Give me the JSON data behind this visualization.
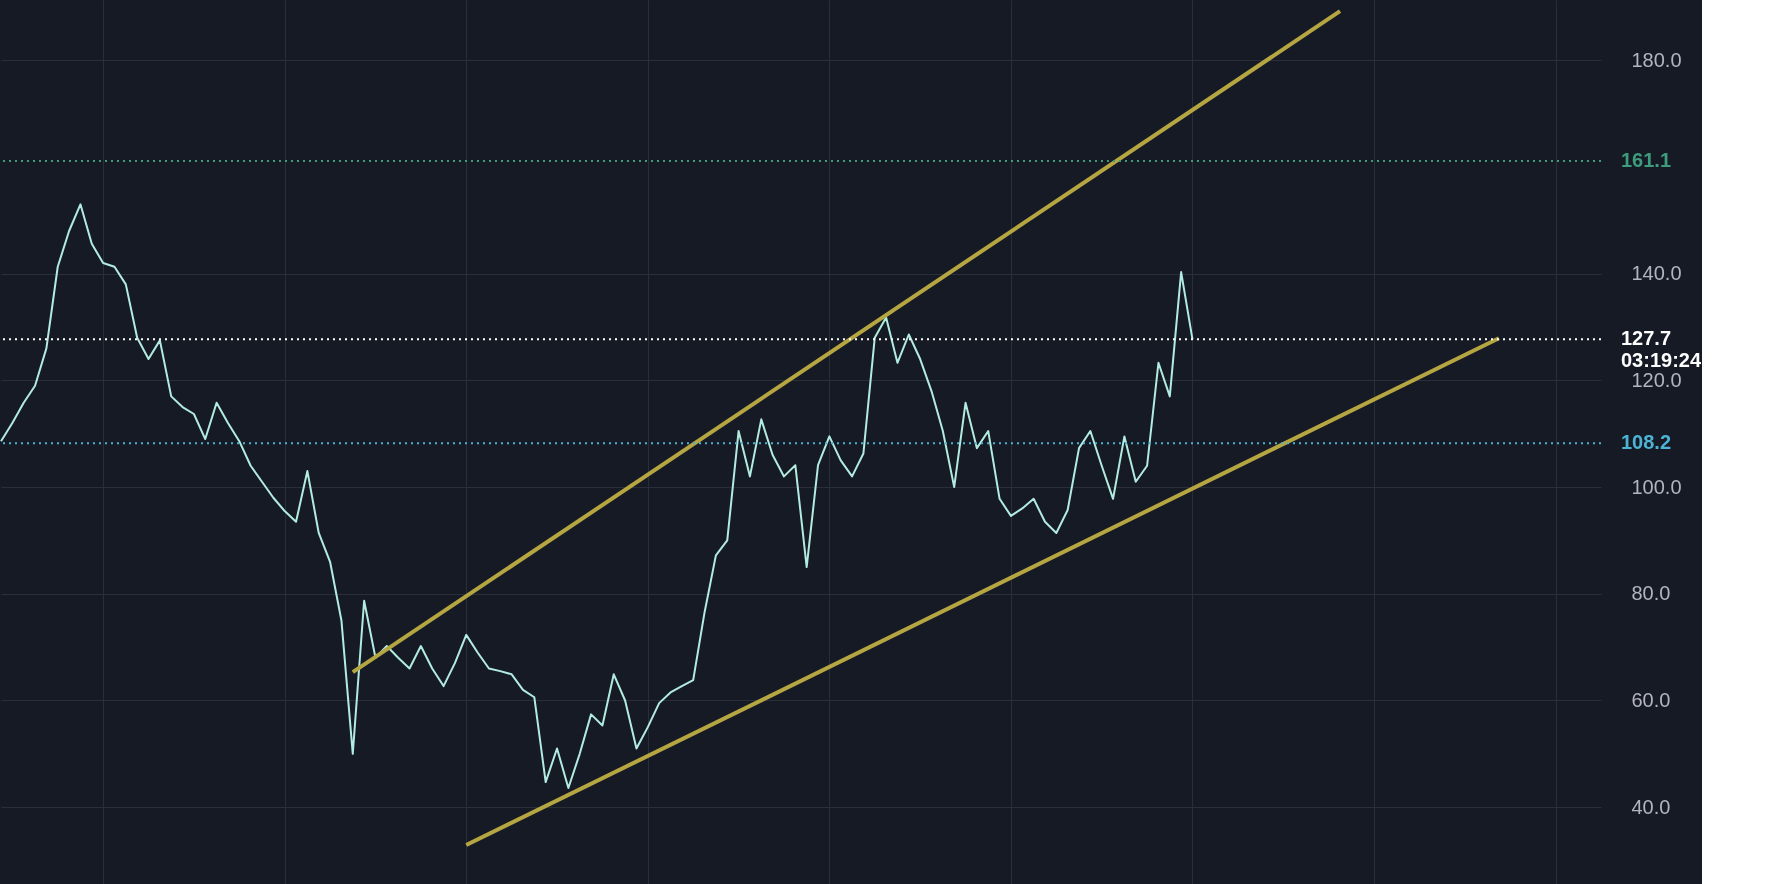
{
  "chart_data": {
    "type": "line",
    "ylim": [
      25.6,
      191.3
    ],
    "categories": [
      null,
      null,
      null,
      null,
      null,
      null,
      null,
      null,
      null,
      null,
      null,
      null,
      null,
      null,
      null,
      null,
      null,
      null,
      null,
      null,
      null,
      null,
      null,
      null,
      null,
      null,
      null,
      null,
      null,
      null,
      null,
      null,
      null,
      null,
      null,
      null,
      null,
      null,
      null,
      null,
      null,
      null,
      null,
      null,
      null,
      null,
      null,
      null,
      null,
      null,
      null,
      null,
      null,
      null,
      null,
      null,
      null,
      null,
      null,
      null,
      null,
      null,
      null,
      null,
      null,
      null,
      null,
      null,
      null,
      null,
      null,
      null,
      null,
      null,
      null,
      null,
      null,
      null,
      null,
      null,
      null,
      null,
      null,
      null,
      null,
      null,
      null,
      null,
      null,
      null,
      null,
      null,
      null,
      null,
      null,
      null,
      null,
      null,
      null,
      null,
      null,
      null,
      null,
      null,
      null,
      null,
      null,
      null,
      null,
      null,
      null,
      null,
      null,
      null,
      null,
      null,
      null,
      null,
      null,
      null,
      null,
      null,
      null,
      null,
      null,
      null,
      null,
      null,
      null,
      null,
      null,
      null,
      null,
      null,
      null,
      null,
      null,
      null,
      null,
      null,
      null,
      null
    ],
    "yticks": [
      {
        "value": 40,
        "label": "40.0"
      },
      {
        "value": 60,
        "label": "60.0"
      },
      {
        "value": 80,
        "label": "80.0"
      },
      {
        "value": 100,
        "label": "100.0"
      },
      {
        "value": 120,
        "label": "120.0"
      },
      {
        "value": 140,
        "label": "140.0"
      },
      {
        "value": 180,
        "label": "180.0"
      }
    ],
    "tick_labels": "y",
    "grid": true,
    "marker": "none",
    "series": [
      {
        "color": "#b2ebe0",
        "values": [
          108.6,
          112,
          115.8,
          119,
          126,
          141.3,
          148,
          153,
          145.6,
          142,
          141.3,
          138,
          128,
          124,
          127.5,
          117,
          115,
          113.7,
          109,
          115.8,
          112,
          108.6,
          104,
          101,
          98,
          95.5,
          93.5,
          103,
          91.4,
          86,
          75,
          50,
          78.7,
          68,
          70.2,
          68,
          66,
          70.2,
          66,
          62.7,
          67,
          72.3,
          69,
          66,
          65.5,
          64.9,
          62,
          60.6,
          44.7,
          51,
          43.6,
          50,
          57.4,
          55.3,
          64.9,
          60,
          51,
          55,
          59.5,
          61.5,
          62.7,
          63.8,
          76.5,
          87.2,
          90,
          110.5,
          102,
          112.7,
          106,
          102,
          104.1,
          85,
          104.1,
          109.5,
          105,
          102,
          106.3,
          128,
          131.8,
          123.3,
          128.6,
          124,
          118,
          110.5,
          100,
          115.8,
          107.3,
          110.5,
          97.8,
          94.6,
          96,
          97.8,
          93.5,
          91.4,
          95.7,
          107.3,
          110.5,
          104,
          97.8,
          109.5,
          101,
          104,
          123.3,
          117,
          140.3,
          127.7,
          null,
          null,
          null,
          null,
          null,
          null,
          null,
          null,
          null,
          null,
          null,
          null,
          null,
          null,
          null,
          null,
          null,
          null,
          null,
          null,
          null,
          null,
          null,
          null,
          null,
          null,
          null,
          null,
          null,
          null,
          null,
          null,
          null,
          null,
          null,
          null
        ]
      },
      {
        "color": "#b5a642",
        "values": [
          null,
          null,
          null,
          null,
          null,
          null,
          null,
          null,
          null,
          null,
          null,
          null,
          null,
          null,
          null,
          null,
          null,
          null,
          null,
          null,
          null,
          null,
          null,
          null,
          null,
          null,
          null,
          null,
          null,
          null,
          null,
          65.3,
          null,
          null,
          null,
          null,
          null,
          null,
          null,
          null,
          null,
          null,
          null,
          null,
          null,
          null,
          null,
          null,
          null,
          null,
          null,
          null,
          null,
          null,
          null,
          null,
          null,
          null,
          null,
          null,
          null,
          null,
          null,
          null,
          null,
          null,
          null,
          null,
          null,
          null,
          null,
          null,
          null,
          null,
          null,
          null,
          null,
          null,
          null,
          null,
          null,
          null,
          null,
          null,
          null,
          null,
          null,
          null,
          null,
          null,
          null,
          null,
          null,
          null,
          null,
          null,
          null,
          null,
          null,
          null,
          null,
          null,
          null,
          null,
          null,
          null,
          null,
          null,
          null,
          null,
          null,
          null,
          null,
          null,
          null,
          null,
          null,
          null,
          189.2,
          null,
          null,
          null,
          null,
          null,
          null,
          null,
          null,
          null,
          null,
          null,
          null,
          null,
          null,
          null,
          null,
          null,
          null,
          null,
          null,
          null,
          null,
          null
        ]
      },
      {
        "color": "#b5a642",
        "values": [
          null,
          null,
          null,
          null,
          null,
          null,
          null,
          null,
          null,
          null,
          null,
          null,
          null,
          null,
          null,
          null,
          null,
          null,
          null,
          null,
          null,
          null,
          null,
          null,
          null,
          null,
          null,
          null,
          null,
          null,
          null,
          null,
          null,
          null,
          null,
          null,
          null,
          null,
          null,
          null,
          null,
          32.9,
          null,
          null,
          null,
          null,
          null,
          null,
          null,
          null,
          null,
          null,
          null,
          null,
          null,
          null,
          null,
          null,
          null,
          null,
          null,
          null,
          null,
          null,
          null,
          null,
          null,
          null,
          null,
          null,
          null,
          null,
          null,
          null,
          null,
          null,
          null,
          null,
          null,
          null,
          null,
          null,
          null,
          null,
          null,
          null,
          null,
          null,
          null,
          null,
          null,
          null,
          null,
          null,
          null,
          null,
          null,
          null,
          null,
          null,
          null,
          null,
          null,
          null,
          null,
          null,
          null,
          null,
          null,
          null,
          null,
          null,
          null,
          null,
          null,
          null,
          null,
          null,
          null,
          null,
          null,
          null,
          null,
          null,
          null,
          null,
          null,
          null,
          null,
          null,
          null,
          null,
          127.9,
          null,
          null,
          null,
          null,
          null,
          null,
          null,
          null,
          null
        ]
      }
    ],
    "ref_lines": [
      {
        "axis": "y",
        "value": 161.1,
        "label": "161.1",
        "color": "#3d9c7c",
        "line_style": "dotted"
      },
      {
        "axis": "y",
        "value": 127.7,
        "label": "127.7 03:19:24",
        "color": "#ffffff",
        "line_style": "dotted"
      },
      {
        "axis": "y",
        "value": 108.2,
        "label": "108.2",
        "color": "#4cb3d4",
        "line_style": "dotted"
      }
    ]
  }
}
